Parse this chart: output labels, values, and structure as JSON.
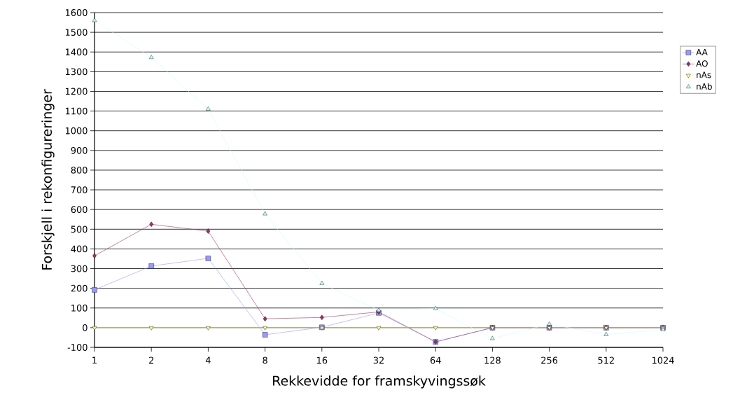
{
  "chart_data": {
    "type": "line",
    "xlabel": "Rekkevidde for framskyvingssøk",
    "ylabel": "Forskjell i rekonfigureringer",
    "categories": [
      "1",
      "2",
      "4",
      "8",
      "16",
      "32",
      "64",
      "128",
      "256",
      "512",
      "1024"
    ],
    "series": [
      {
        "name": "AA",
        "color": "#9999ff",
        "marker": "square",
        "values": [
          192,
          313,
          352,
          -36,
          2,
          75,
          -72,
          0,
          0,
          0,
          0
        ]
      },
      {
        "name": "AO",
        "color": "#993366",
        "marker": "diamond",
        "values": [
          365,
          525,
          490,
          45,
          52,
          80,
          -72,
          0,
          0,
          0,
          0
        ]
      },
      {
        "name": "nAs",
        "color": "#ffff99",
        "marker": "triangle_down",
        "values": [
          0,
          0,
          0,
          0,
          0,
          0,
          0,
          0,
          0,
          0,
          0
        ]
      },
      {
        "name": "nAb",
        "color": "#ccffff",
        "marker": "triangle",
        "values": [
          1560,
          1372,
          1110,
          578,
          225,
          88,
          97,
          -55,
          18,
          -35,
          -10
        ]
      }
    ],
    "ylim": [
      -100,
      1600
    ],
    "yticks": [
      -100,
      0,
      100,
      200,
      300,
      400,
      500,
      600,
      700,
      800,
      900,
      1000,
      1100,
      1200,
      1300,
      1400,
      1500,
      1600
    ],
    "grid": "y",
    "legend": "right",
    "line_style": "solid"
  }
}
